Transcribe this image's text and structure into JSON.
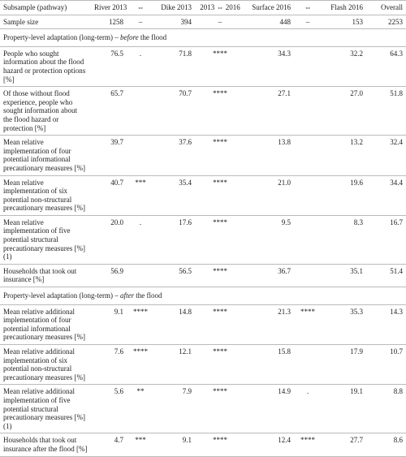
{
  "table": {
    "header": [
      "Subsample (pathway)",
      "River 2013",
      "⇔",
      "Dike 2013",
      "2013 ⇔ 2016",
      "Surface 2016",
      "⇔",
      "Flash 2016",
      "Overall"
    ],
    "sample_row": {
      "label": "Sample size",
      "cells": [
        "1258",
        "–",
        "394",
        "–",
        "448",
        "–",
        "153",
        "2253"
      ]
    },
    "sections": [
      {
        "title": [
          "Property-level adaptation (long-term) – ",
          "before",
          " the flood"
        ],
        "rows": [
          {
            "label": "People who sought information about the flood hazard or protection options [%]",
            "cells": [
              "76.5",
              ".",
              "71.8",
              "****",
              "34.3",
              null,
              "32.2",
              "64.3"
            ]
          },
          {
            "label": "Of those without flood experience, people who sought information about the flood hazard or protection [%]",
            "cells": [
              "65.7",
              null,
              "70.7",
              "****",
              "27.1",
              null,
              "27.0",
              "51.8"
            ]
          },
          {
            "label": "Mean relative implementation of four potential informational precautionary measures [%]",
            "cells": [
              "39.7",
              null,
              "37.6",
              "****",
              "13.8",
              null,
              "13.2",
              "32.4"
            ]
          },
          {
            "label": "Mean relative implementation of six potential non-structural precautionary measures [%]",
            "cells": [
              "40.7",
              "***",
              "35.4",
              "****",
              "21.0",
              null,
              "19.6",
              "34.4"
            ]
          },
          {
            "label": "Mean relative implementation of five potential structural precautionary measures [%] (1)",
            "cells": [
              "20.0",
              ".",
              "17.6",
              "****",
              "9.5",
              null,
              "8.3",
              "16.7"
            ]
          },
          {
            "label": "Households that took out insurance [%]",
            "cells": [
              "56.9",
              null,
              "56.5",
              "****",
              "36.7",
              null,
              "35.1",
              "51.4"
            ]
          }
        ]
      },
      {
        "title": [
          "Property-level adaptation (long-term) – ",
          "after",
          " the flood"
        ],
        "rows": [
          {
            "label": "Mean relative additional implementation of four potential informational precautionary measures [%]",
            "cells": [
              "9.1",
              "****",
              "14.8",
              "****",
              "21.3",
              "****",
              "35.3",
              "14.3"
            ]
          },
          {
            "label": "Mean relative additional implementation of six potential non-structural precautionary measures [%]",
            "cells": [
              "7.6",
              "****",
              "12.1",
              "****",
              "15.8",
              null,
              "17.9",
              "10.7"
            ]
          },
          {
            "label": "Mean relative additional implementation of five potential structural precautionary measures [%] (1)",
            "cells": [
              "5.6",
              "**",
              "7.9",
              "****",
              "14.9",
              ".",
              "19.1",
              "8.8"
            ]
          },
          {
            "label": "Households that took out insurance after the flood [%]",
            "cells": [
              "4.7",
              "***",
              "9.1",
              "****",
              "12.4",
              "****",
              "27.7",
              "8.6"
            ]
          }
        ]
      }
    ]
  }
}
